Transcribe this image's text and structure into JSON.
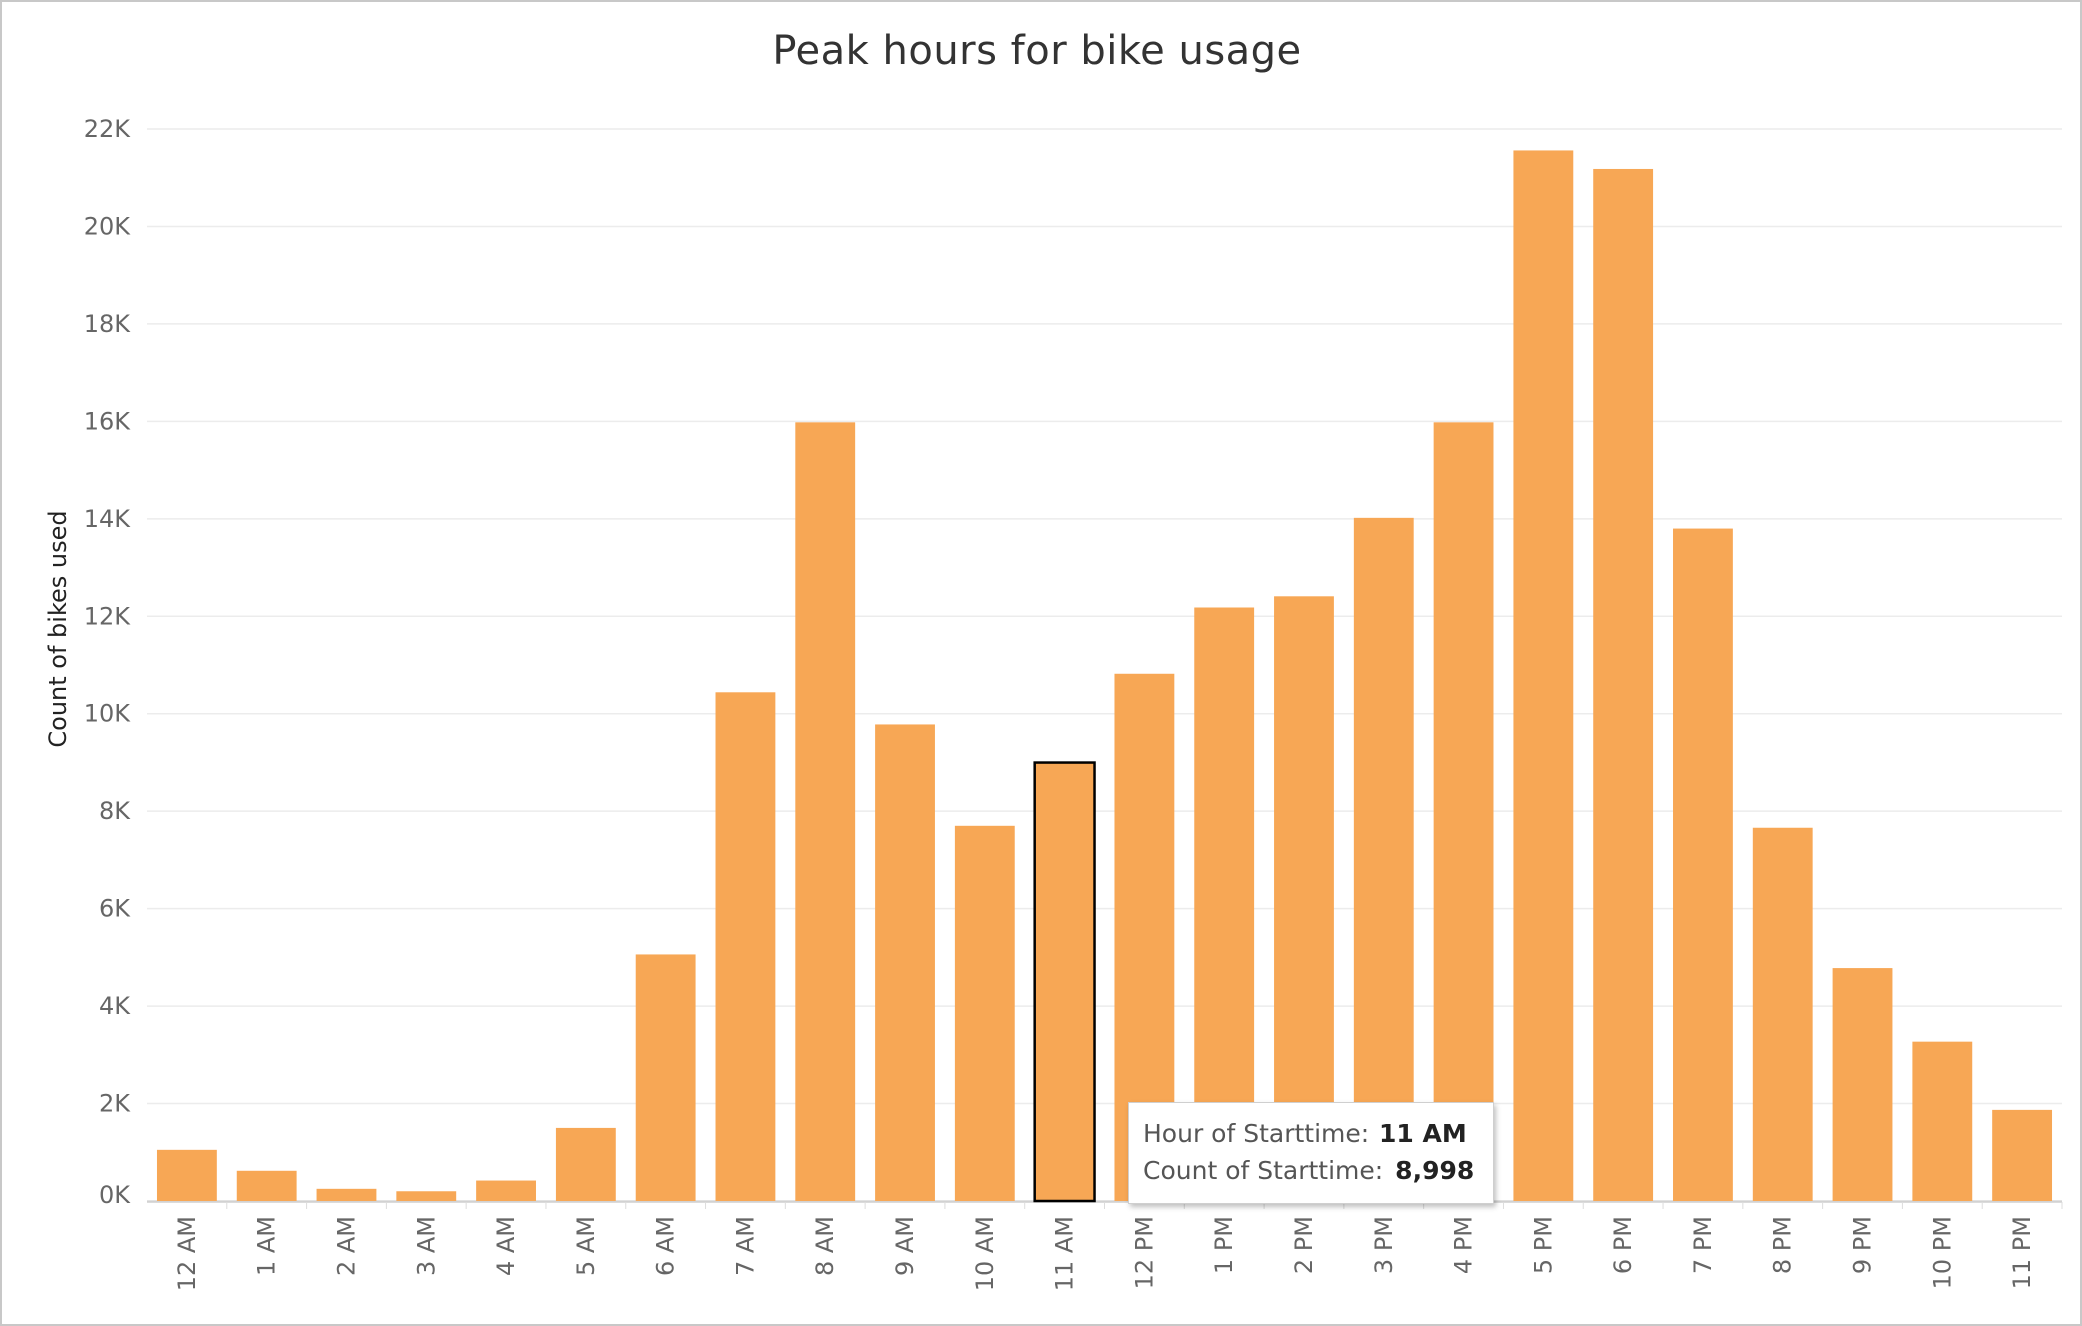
{
  "chart_data": {
    "type": "bar",
    "title": "Peak hours for bike usage",
    "xlabel": "",
    "ylabel": "Count of bikes used",
    "categories": [
      "12 AM",
      "1 AM",
      "2 AM",
      "3 AM",
      "4 AM",
      "5 AM",
      "6 AM",
      "7 AM",
      "8 AM",
      "9 AM",
      "10 AM",
      "11 AM",
      "12 PM",
      "1 PM",
      "2 PM",
      "3 PM",
      "4 PM",
      "5 PM",
      "6 PM",
      "7 PM",
      "8 PM",
      "9 PM",
      "10 PM",
      "11 PM"
    ],
    "values": [
      1050,
      620,
      250,
      200,
      420,
      1500,
      5060,
      10440,
      15980,
      9780,
      7700,
      8998,
      10820,
      12180,
      12410,
      14020,
      15980,
      21560,
      21180,
      13800,
      7660,
      4780,
      3270,
      1870
    ],
    "ylim": [
      0,
      22000
    ],
    "yticks": [
      0,
      2000,
      4000,
      6000,
      8000,
      10000,
      12000,
      14000,
      16000,
      18000,
      20000,
      22000
    ],
    "ytick_labels": [
      "0K",
      "2K",
      "4K",
      "6K",
      "8K",
      "10K",
      "12K",
      "14K",
      "16K",
      "18K",
      "20K",
      "22K"
    ],
    "grid": true,
    "bar_color": "#f7a755",
    "highlighted_category": "11 AM",
    "tooltip": {
      "row1_label": "Hour of Starttime:",
      "row1_value": "11 AM",
      "row2_label": "Count of Starttime:",
      "row2_value": "8,998"
    }
  }
}
